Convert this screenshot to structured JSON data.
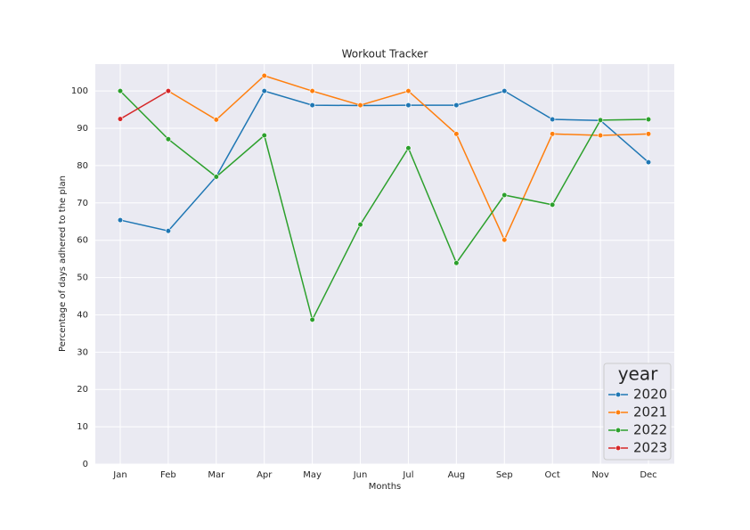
{
  "chart_data": {
    "type": "line",
    "title": "Workout Tracker",
    "x_label": "Months",
    "y_label": "Percentage of days adhered to the plan",
    "categories": [
      "Jan",
      "Feb",
      "Mar",
      "Apr",
      "May",
      "Jun",
      "Jul",
      "Aug",
      "Sep",
      "Oct",
      "Nov",
      "Dec"
    ],
    "series": [
      {
        "name": "2020",
        "color": "#1f77b4",
        "values": [
          65.4,
          62.5,
          77.1,
          100,
          96.2,
          96.1,
          96.2,
          96.2,
          100,
          92.4,
          92.1,
          80.9
        ]
      },
      {
        "name": "2021",
        "color": "#ff7f0e",
        "values": [
          null,
          100,
          92.3,
          104.1,
          100,
          96.2,
          100,
          88.5,
          60.1,
          88.5,
          88.1,
          88.5
        ]
      },
      {
        "name": "2022",
        "color": "#2ca02c",
        "values": [
          100,
          87.1,
          77.0,
          88.1,
          38.7,
          64.2,
          84.7,
          53.9,
          72.1,
          69.5,
          92.2,
          92.4
        ]
      },
      {
        "name": "2023",
        "color": "#d62728",
        "values": [
          92.5,
          100,
          null,
          null,
          null,
          null,
          null,
          null,
          null,
          null,
          null,
          null
        ]
      }
    ],
    "legend_title": "year",
    "legend": "lower right",
    "ylim": [
      0,
      107.2
    ],
    "yticks": [
      0,
      10,
      20,
      30,
      40,
      50,
      60,
      70,
      80,
      90,
      100
    ],
    "grid": true
  }
}
